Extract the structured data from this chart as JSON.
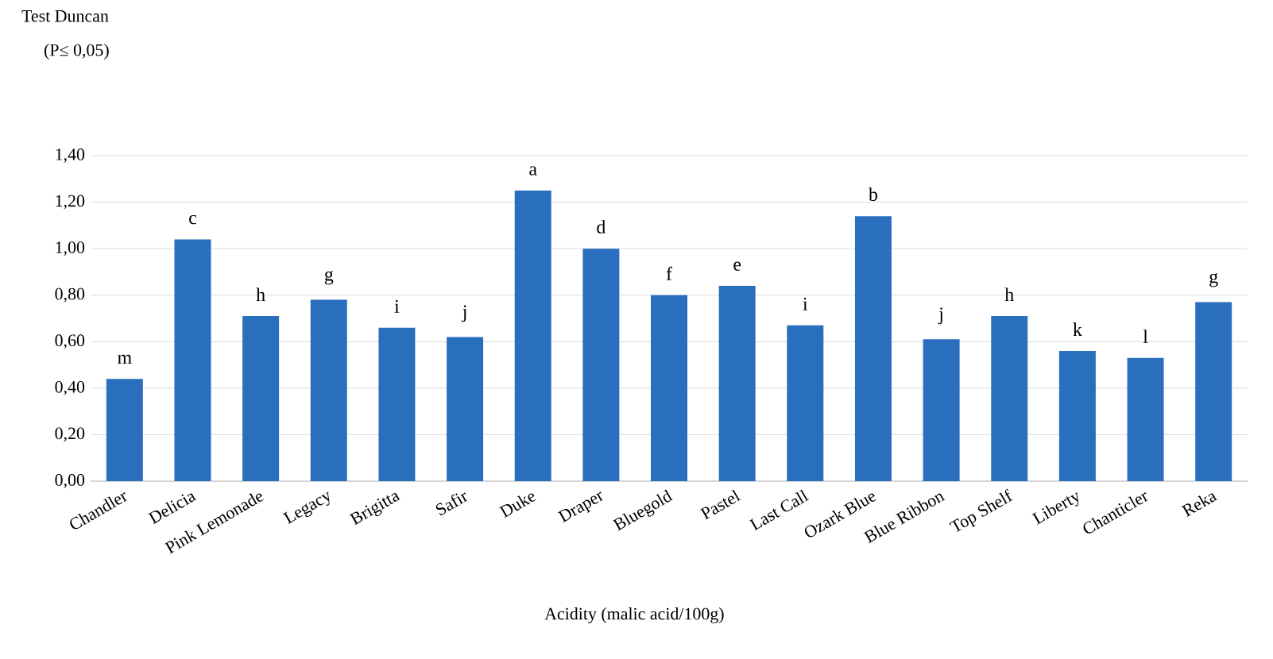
{
  "chart_data": {
    "type": "bar",
    "title": "Test Duncan",
    "subtitle": "(P≤ 0,05)",
    "xlabel": "Acidity (malic acid/100g)",
    "categories": [
      "Chandler",
      "Delicia",
      "Pink Lemonade",
      "Legacy",
      "Brigitta",
      "Safir",
      "Duke",
      "Draper",
      "Bluegold",
      "Pastel",
      "Last Call",
      "Ozark Blue",
      "Blue Ribbon",
      "Top Shelf",
      "Liberty",
      "Chanticler",
      "Reka"
    ],
    "values": [
      0.44,
      1.04,
      0.71,
      0.78,
      0.66,
      0.62,
      1.25,
      1.0,
      0.8,
      0.84,
      0.67,
      1.14,
      0.61,
      0.71,
      0.56,
      0.53,
      0.77
    ],
    "color": "#2a6fbd",
    "ylim": [
      0,
      1.4
    ],
    "yticks": [
      {
        "value": 0,
        "label": "0,00"
      },
      {
        "value": 0.2,
        "label": "0,20"
      },
      {
        "value": 0.4,
        "label": "0,40"
      },
      {
        "value": 0.6,
        "label": "0,60"
      },
      {
        "value": 0.8,
        "label": "0,80"
      },
      {
        "value": 1.0,
        "label": "1,00"
      },
      {
        "value": 1.2,
        "label": "1,20"
      },
      {
        "value": 1.4,
        "label": "1,40"
      }
    ],
    "grid": "y",
    "annotations": [
      {
        "text": "m",
        "x": "Chandler",
        "y": 0.44
      },
      {
        "text": "c",
        "x": "Delicia",
        "y": 1.04
      },
      {
        "text": "h",
        "x": "Pink Lemonade",
        "y": 0.71
      },
      {
        "text": "g",
        "x": "Legacy",
        "y": 0.78
      },
      {
        "text": "i",
        "x": "Brigitta",
        "y": 0.66
      },
      {
        "text": "j",
        "x": "Safir",
        "y": 0.62
      },
      {
        "text": "a",
        "x": "Duke",
        "y": 1.25
      },
      {
        "text": "d",
        "x": "Draper",
        "y": 1.0
      },
      {
        "text": "f",
        "x": "Bluegold",
        "y": 0.8
      },
      {
        "text": "e",
        "x": "Pastel",
        "y": 0.84
      },
      {
        "text": "i",
        "x": "Last Call",
        "y": 0.67
      },
      {
        "text": "b",
        "x": "Ozark Blue",
        "y": 1.14
      },
      {
        "text": "j",
        "x": "Blue Ribbon",
        "y": 0.61
      },
      {
        "text": "h",
        "x": "Top Shelf",
        "y": 0.71
      },
      {
        "text": "k",
        "x": "Liberty",
        "y": 0.56
      },
      {
        "text": "l",
        "x": "Chanticler",
        "y": 0.53
      },
      {
        "text": "g",
        "x": "Reka",
        "y": 0.77
      }
    ]
  }
}
